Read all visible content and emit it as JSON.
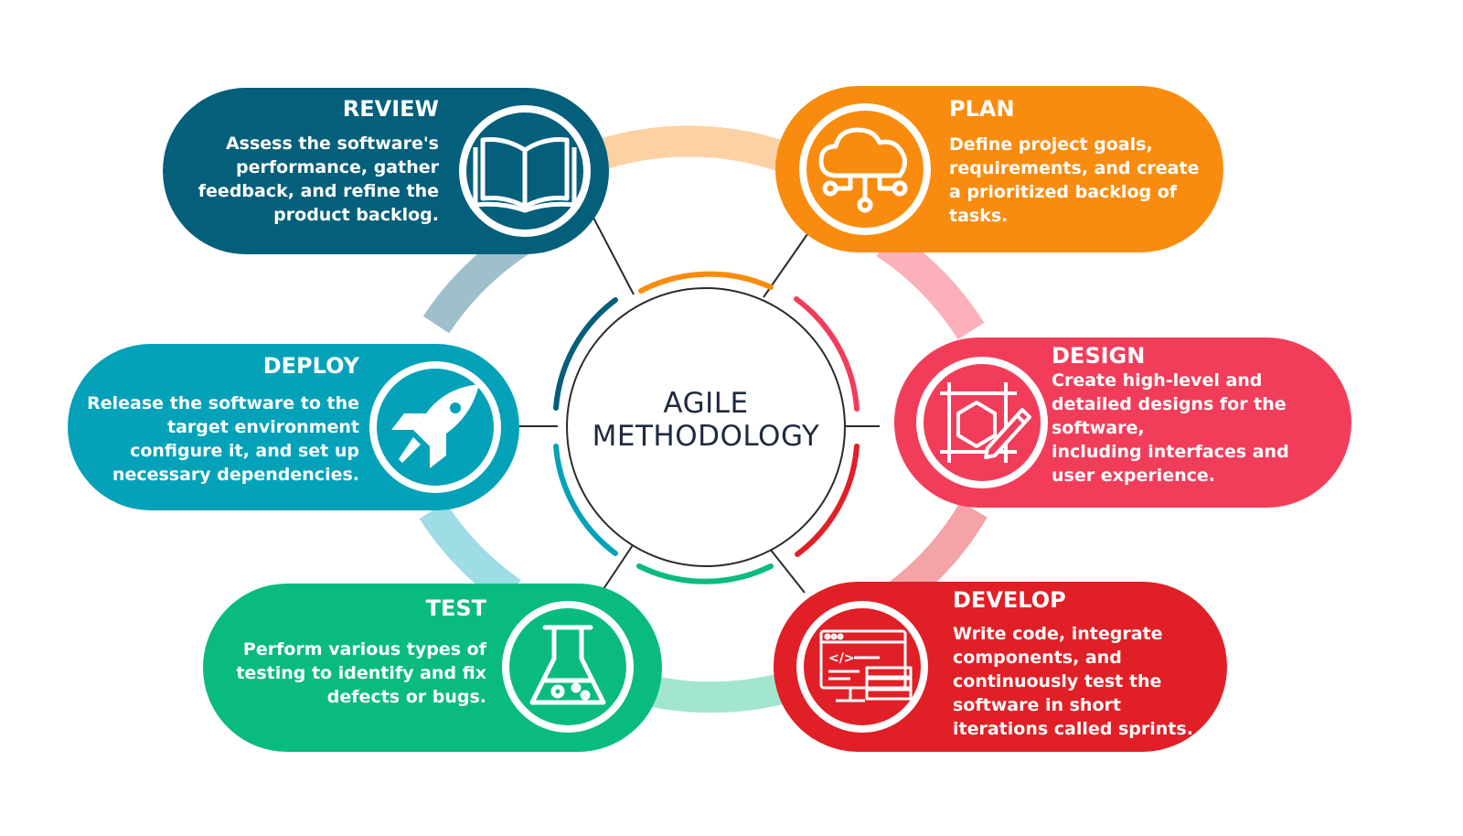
{
  "center": {
    "line1": "AGILE",
    "line2": "METHODOLOGY"
  },
  "stages": [
    {
      "key": "review",
      "title": "REVIEW",
      "icon": "open-book-icon",
      "color": "#045f7b",
      "lines": [
        "Assess the software's",
        "performance, gather",
        "feedback, and refine the",
        "product backlog."
      ]
    },
    {
      "key": "plan",
      "title": "PLAN",
      "icon": "cloud-network-icon",
      "color": "#f98c0e",
      "lines": [
        "Define project goals,",
        "requirements, and create",
        "a prioritized backlog of",
        "tasks."
      ]
    },
    {
      "key": "deploy",
      "title": "DEPLOY",
      "icon": "rocket-icon",
      "color": "#04a2b9",
      "lines": [
        "Release the software to the",
        "target environment",
        "configure it, and set up",
        "necessary dependencies."
      ]
    },
    {
      "key": "design",
      "title": "DESIGN",
      "icon": "design-pencil-icon",
      "color": "#f23d5a",
      "lines": [
        "Create high-level and",
        "detailed designs for the",
        "software,",
        "including interfaces and",
        "user experience."
      ]
    },
    {
      "key": "test",
      "title": "TEST",
      "icon": "flask-icon",
      "color": "#09bb81",
      "lines": [
        "Perform various types of",
        "testing to identify and fix",
        "defects or bugs."
      ]
    },
    {
      "key": "develop",
      "title": "DEVELOP",
      "icon": "code-window-icon",
      "color": "#e11f26",
      "lines": [
        "Write code, integrate",
        "components, and",
        "continuously test the",
        "software in short",
        "iterations called sprints."
      ]
    }
  ]
}
